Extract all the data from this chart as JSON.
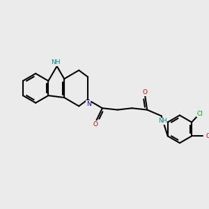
{
  "background_color": "#ebebeb",
  "bond_lw": 1.5,
  "atom_colors": {
    "N": "#0000CC",
    "NH": "#008888",
    "O": "#CC0000",
    "Cl": "#00AA00",
    "C": "black"
  },
  "font_size": 6.5
}
